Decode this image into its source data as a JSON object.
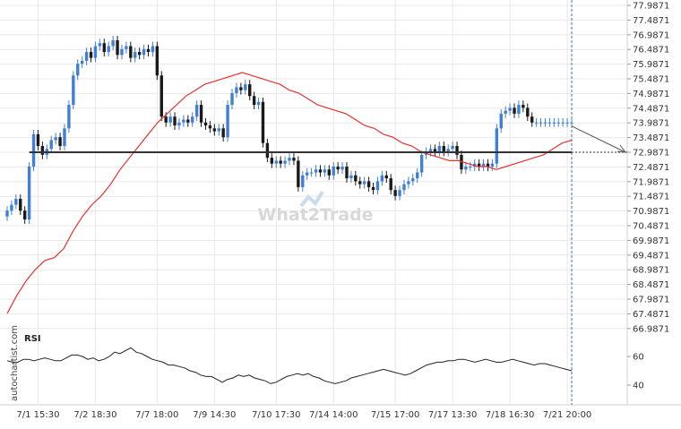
{
  "chart_data": {
    "type": "candlestick",
    "watermark": "What2Trade",
    "side_watermark": "autochartist.com",
    "colors": {
      "up": "#3f7fd8",
      "down": "#1a1a1a",
      "ma": "#e8312f",
      "level": "#333333",
      "rsi": "#222222",
      "projection": "#555555",
      "now_line": "#3d6fa8",
      "grid": "#e8e8e8",
      "axis_text": "#333333"
    },
    "y_ticks": [
      "77.9871",
      "77.4871",
      "76.9871",
      "76.4871",
      "75.9871",
      "75.4871",
      "74.9871",
      "74.4871",
      "73.9871",
      "73.4871",
      "72.9871",
      "72.4871",
      "71.9871",
      "71.4871",
      "70.9871",
      "70.4871",
      "69.9871",
      "69.4871",
      "68.9871",
      "68.4871",
      "67.9871",
      "67.4871",
      "66.9871"
    ],
    "y_range": [
      66.7,
      78.2
    ],
    "x_labels": [
      "7/1 15:30",
      "7/2 18:30",
      "7/7 18:00",
      "7/9 14:30",
      "7/10 17:30",
      "7/14 14:00",
      "7/15 17:00",
      "7/17 13:30",
      "7/18 16:30",
      "7/21 20:00"
    ],
    "x_label_index": [
      7,
      20,
      34,
      47,
      61,
      74,
      88,
      101,
      114,
      127
    ],
    "bar_count": 129,
    "support_level": 72.9871,
    "support_start_index": 5,
    "projection_target_index": 139,
    "closes": [
      71.0,
      71.2,
      71.4,
      71.0,
      70.7,
      72.5,
      73.6,
      73.2,
      72.9,
      73.1,
      73.4,
      73.5,
      73.2,
      73.8,
      74.6,
      75.6,
      76.0,
      76.1,
      76.4,
      76.2,
      76.6,
      76.7,
      76.4,
      76.6,
      76.8,
      76.3,
      76.5,
      76.6,
      76.2,
      76.4,
      76.3,
      76.5,
      76.4,
      76.6,
      75.6,
      74.2,
      74.0,
      74.2,
      73.9,
      74.0,
      74.1,
      74.0,
      74.2,
      74.6,
      74.0,
      73.9,
      73.8,
      73.7,
      73.8,
      73.5,
      74.6,
      75.0,
      75.2,
      75.1,
      75.3,
      74.9,
      74.6,
      74.7,
      73.3,
      72.8,
      72.6,
      72.7,
      72.6,
      72.7,
      72.8,
      72.7,
      71.8,
      72.2,
      72.3,
      72.3,
      72.4,
      72.3,
      72.4,
      72.2,
      72.5,
      72.4,
      72.5,
      72.1,
      72.2,
      72.0,
      71.9,
      72.0,
      71.8,
      71.7,
      72.0,
      72.2,
      72.1,
      71.7,
      71.5,
      71.7,
      71.9,
      72.0,
      72.1,
      72.3,
      72.9,
      73.0,
      73.1,
      73.0,
      73.2,
      73.0,
      73.1,
      73.2,
      72.9,
      72.4,
      72.5,
      72.5,
      72.6,
      72.5,
      72.6,
      72.5,
      72.6,
      73.8,
      74.3,
      74.4,
      74.5,
      74.3,
      74.6,
      74.5,
      74.2,
      74.0
    ],
    "ma_values": [
      67.5,
      68.1,
      68.6,
      69.0,
      69.3,
      69.4,
      69.7,
      70.3,
      70.8,
      71.2,
      71.5,
      71.9,
      72.4,
      72.8,
      73.2,
      73.6,
      74.0,
      74.3,
      74.6,
      74.9,
      75.1,
      75.3,
      75.4,
      75.5,
      75.6,
      75.7,
      75.6,
      75.5,
      75.4,
      75.3,
      75.1,
      75.0,
      74.8,
      74.6,
      74.5,
      74.4,
      74.3,
      74.1,
      73.9,
      73.8,
      73.6,
      73.5,
      73.3,
      73.2,
      73.0,
      72.9,
      72.8,
      72.7,
      72.7,
      72.6,
      72.5,
      72.5,
      72.4,
      72.5,
      72.6,
      72.7,
      72.8,
      72.9,
      73.1,
      73.3,
      73.4
    ],
    "rsi_ticks": [
      "60",
      "40"
    ],
    "rsi_label": "RSI",
    "rsi_values": [
      57,
      56,
      56,
      58,
      58,
      57,
      58,
      59,
      58,
      57,
      57,
      59,
      61,
      61,
      60,
      58,
      59,
      57,
      58,
      60,
      63,
      62,
      64,
      66,
      63,
      62,
      60,
      58,
      57,
      56,
      54,
      54,
      53,
      52,
      50,
      49,
      47,
      46,
      46,
      44,
      42,
      44,
      45,
      47,
      46,
      47,
      45,
      44,
      43,
      41,
      42,
      44,
      46,
      47,
      48,
      47,
      48,
      46,
      45,
      43,
      42,
      41,
      42,
      43,
      45,
      46,
      47,
      48,
      49,
      50,
      51,
      50,
      49,
      48,
      47,
      48,
      50,
      52,
      54,
      55,
      56,
      56,
      57,
      57,
      58,
      58,
      57,
      56,
      57,
      58,
      57,
      56,
      56,
      57,
      58,
      57,
      56,
      55,
      54,
      55,
      55,
      54,
      53,
      52,
      51,
      50
    ]
  }
}
